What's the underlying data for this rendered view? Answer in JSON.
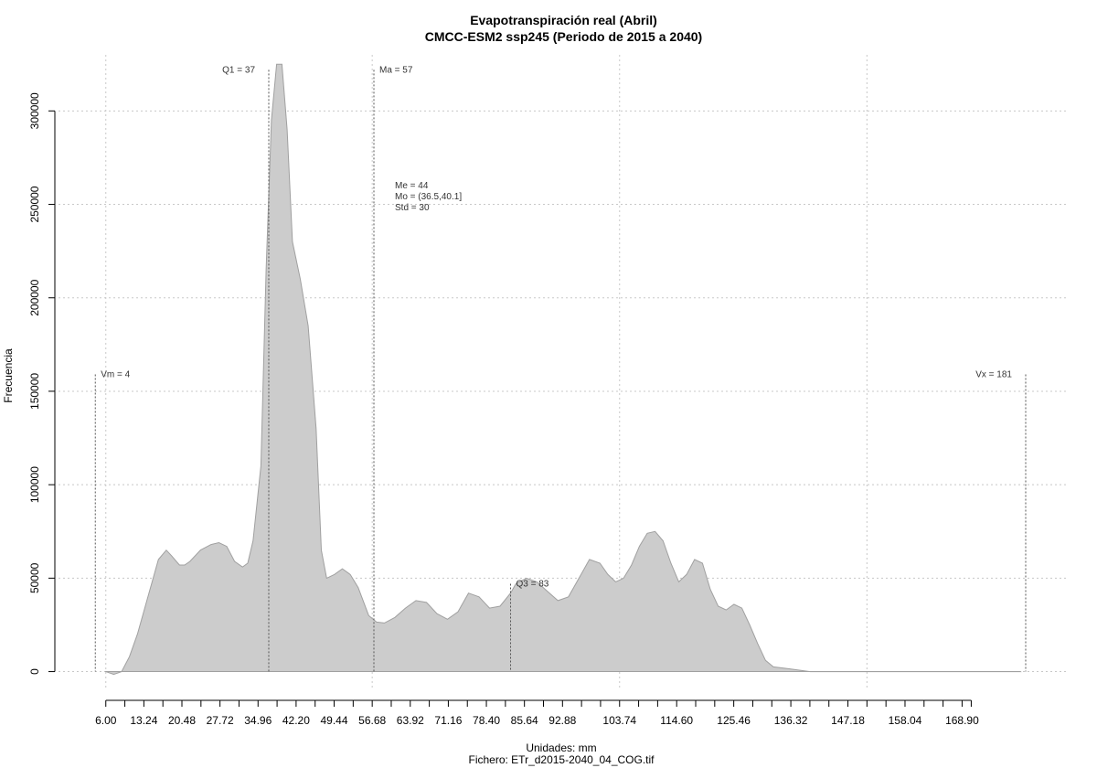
{
  "chart_data": {
    "type": "area",
    "title": "Evapotranspiración real (Abril)",
    "subtitle": "CMCC-ESM2 ssp245 (Periodo de 2015 a 2040)",
    "xlabel": "Unidades: mm",
    "ylabel": "Frecuencia",
    "caption": "Fichero: ETr_d2015-2040_04_COG.tif",
    "xlim": [
      -3,
      189
    ],
    "ylim": [
      -10000,
      330000
    ],
    "grid": true,
    "fill_color": "#cccccc",
    "line_color": "#a0a0a0",
    "x_ticks": [
      "6.00",
      "13.24",
      "20.48",
      "27.72",
      "34.96",
      "42.20",
      "49.44",
      "56.68",
      "63.92",
      "71.16",
      "78.40",
      "85.64",
      "92.88",
      "103.74",
      "114.60",
      "125.46",
      "136.32",
      "147.18",
      "158.04",
      "168.90"
    ],
    "y_ticks": [
      "0",
      "50000",
      "100000",
      "150000",
      "200000",
      "250000",
      "300000"
    ],
    "x": [
      6.0,
      7.5,
      9,
      10.5,
      12,
      14,
      16,
      17.5,
      18.5,
      20,
      21,
      22,
      24,
      26,
      27.5,
      29,
      30.5,
      32,
      33,
      34,
      35.5,
      36.5,
      37.5,
      38.5,
      39.5,
      40.5,
      41.5,
      43,
      44.5,
      46,
      47,
      48,
      49.5,
      51,
      52.5,
      54,
      56,
      57.5,
      59,
      61,
      63,
      65,
      67,
      69,
      71,
      73,
      75,
      77,
      79,
      81,
      83,
      84,
      86,
      88,
      90,
      92,
      94,
      96,
      98,
      100,
      101.5,
      103,
      104.5,
      106,
      107.5,
      109,
      110.5,
      112,
      113.5,
      115,
      116.5,
      118,
      119.5,
      121,
      122.5,
      124,
      125.5,
      127,
      128.5,
      130,
      131.5,
      133,
      136,
      140,
      150,
      160,
      170,
      175,
      180
    ],
    "y": [
      0,
      -1500,
      0,
      8000,
      20000,
      40000,
      60000,
      65000,
      62000,
      57000,
      57000,
      59000,
      65000,
      68000,
      69000,
      67000,
      59000,
      56000,
      58000,
      70000,
      110000,
      215000,
      295000,
      325000,
      325000,
      290000,
      230000,
      210000,
      185000,
      130000,
      65000,
      50000,
      52000,
      55000,
      52000,
      45000,
      30000,
      26500,
      26000,
      29000,
      34000,
      38000,
      37000,
      31000,
      28000,
      32000,
      42000,
      40000,
      34000,
      35000,
      42000,
      47000,
      50000,
      48000,
      43000,
      38000,
      40000,
      50000,
      60000,
      58000,
      52000,
      48000,
      50000,
      57000,
      67000,
      74000,
      75000,
      70000,
      58000,
      48000,
      52000,
      60000,
      58000,
      44000,
      35000,
      33000,
      36000,
      34000,
      25000,
      15000,
      6000,
      2500,
      1500,
      0,
      0,
      0,
      0,
      0,
      0
    ],
    "annotations": [
      {
        "label": "Q1 = 37",
        "x": 37,
        "y_top": 322000,
        "label_side": "left"
      },
      {
        "label": "Ma = 57",
        "x": 57,
        "y_top": 322000,
        "label_side": "right"
      },
      {
        "label": "Vm = 4",
        "x": 4,
        "y_top": 159000,
        "label_side": "right"
      },
      {
        "label": "Vx = 181",
        "x": 181,
        "y_top": 159000,
        "label_side": "left"
      },
      {
        "label": "Q3 = 83",
        "x": 83,
        "y_top": 47000,
        "label_side": "right"
      }
    ],
    "stats": [
      "Me = 44",
      "Mo = (36.5,40.1]",
      "Std = 30"
    ]
  }
}
